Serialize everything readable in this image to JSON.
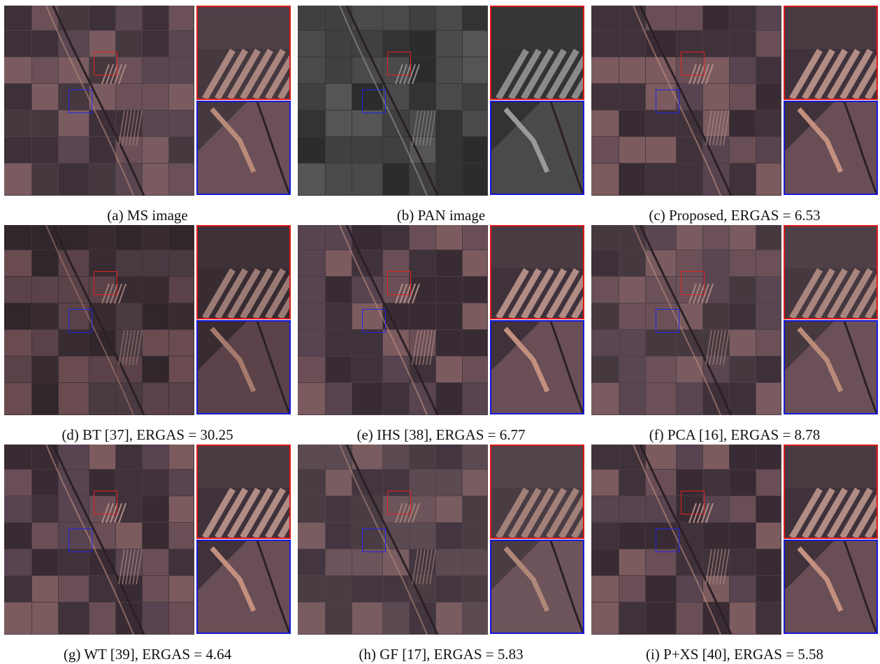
{
  "figure": {
    "panels": [
      {
        "id": "a",
        "caption": "(a) MS image",
        "tone": "ms"
      },
      {
        "id": "b",
        "caption": "(b) PAN image",
        "tone": "pan"
      },
      {
        "id": "c",
        "caption": "(c) Proposed, ERGAS = 6.53",
        "tone": "sharp"
      },
      {
        "id": "d",
        "caption": "(d) BT [37], ERGAS = 30.25",
        "tone": "dark"
      },
      {
        "id": "e",
        "caption": "(e) IHS [38], ERGAS = 6.77",
        "tone": "sharp"
      },
      {
        "id": "f",
        "caption": "(f) PCA [16], ERGAS = 8.78",
        "tone": "ms"
      },
      {
        "id": "g",
        "caption": "(g) WT [39], ERGAS = 4.64",
        "tone": "sharp"
      },
      {
        "id": "h",
        "caption": "(h) GF [17], ERGAS = 5.83",
        "tone": "smooth"
      },
      {
        "id": "i",
        "caption": "(i) P+XS [40], ERGAS = 5.58",
        "tone": "sharp"
      }
    ],
    "colors": {
      "red_roi": "#e01818",
      "blue_roi": "#1818e0",
      "ms_base": "#4f4048",
      "pan_base": "#363636"
    }
  }
}
